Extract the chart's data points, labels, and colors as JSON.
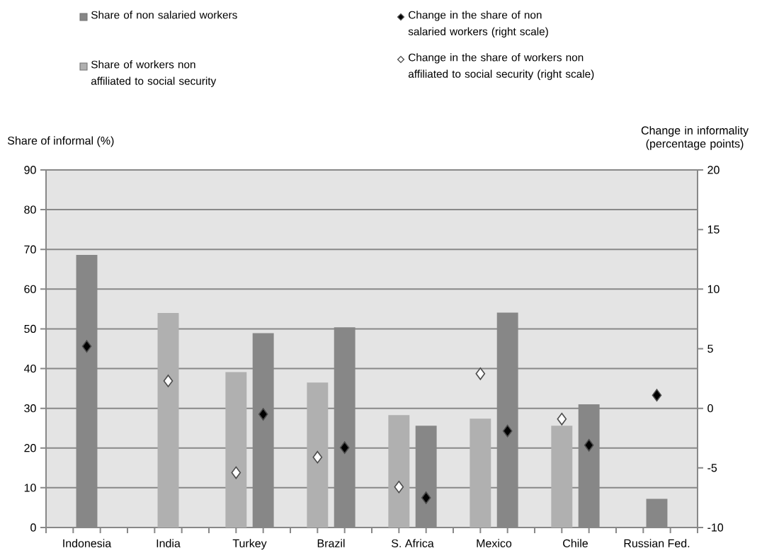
{
  "chart_data": {
    "type": "bar",
    "ylabel": "Share of informal (%)",
    "y2label": "Change in  informality (percentage points)",
    "categories": [
      "Indonesia",
      "India",
      "Turkey",
      "Brazil",
      "S. Africa",
      "Mexico",
      "Chile",
      "Russian Fed."
    ],
    "series": [
      {
        "name": "Share of workers non affiliated to social security",
        "color": "#b0b0b0",
        "values": [
          null,
          54.0,
          39.1,
          36.5,
          28.3,
          27.4,
          25.6,
          null
        ]
      },
      {
        "name": "Share of non salaried workers",
        "color": "#878787",
        "values": [
          68.6,
          null,
          48.9,
          50.4,
          25.6,
          54.1,
          31.0,
          7.2
        ]
      },
      {
        "name": "Change in the share of workers non affiliated to social security (right scale)",
        "type": "scatter",
        "axis": "y2",
        "marker": "diamond",
        "color": "#ffffff",
        "values": [
          null,
          2.3,
          -5.4,
          -4.1,
          -6.6,
          2.9,
          -0.9,
          null
        ]
      },
      {
        "name": "Change in the share of non salaried workers (right scale)",
        "type": "scatter",
        "axis": "y2",
        "marker": "diamond",
        "color": "#000000",
        "values": [
          5.2,
          null,
          -0.5,
          -3.3,
          -7.5,
          -1.9,
          -3.1,
          1.1
        ]
      }
    ],
    "ylim": [
      0,
      90
    ],
    "yticks": [
      0,
      10,
      20,
      30,
      40,
      50,
      60,
      70,
      80,
      90
    ],
    "y2lim": [
      -10,
      20
    ],
    "y2ticks": [
      -10,
      -5,
      0,
      5,
      10,
      15,
      20
    ],
    "grid": "y",
    "legend": "top"
  }
}
